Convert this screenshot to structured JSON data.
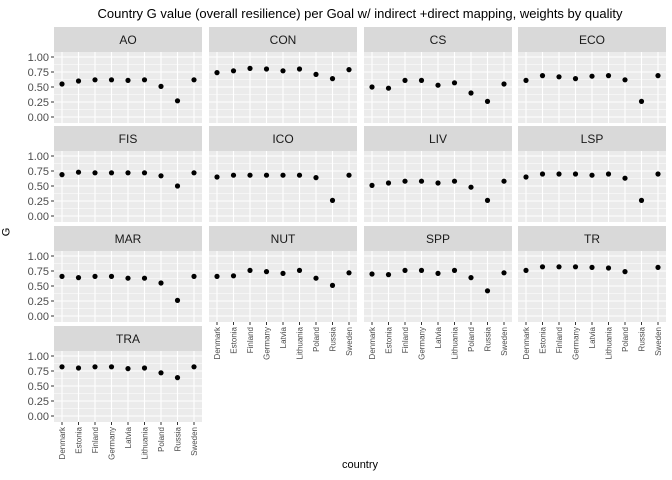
{
  "chart_data": {
    "type": "scatter",
    "title": "Country G value (overall resilience) per Goal w/ indirect +direct mapping, weights by quality",
    "xlabel": "country",
    "ylabel": "G",
    "ylim": [
      0,
      1
    ],
    "yticks": [
      "0.00",
      "0.25",
      "0.50",
      "0.75",
      "1.00"
    ],
    "countries": [
      "Denmark",
      "Estonia",
      "Finland",
      "Germany",
      "Latvia",
      "Lithuania",
      "Poland",
      "Russia",
      "Sweden"
    ],
    "grid": true,
    "facet_layout": "4 columns",
    "panels": [
      {
        "goal": "AO",
        "values": [
          0.55,
          0.6,
          0.62,
          0.62,
          0.61,
          0.62,
          0.51,
          0.27,
          0.62
        ]
      },
      {
        "goal": "CON",
        "values": [
          0.74,
          0.77,
          0.81,
          0.8,
          0.77,
          0.8,
          0.71,
          0.64,
          0.79
        ]
      },
      {
        "goal": "CS",
        "values": [
          0.5,
          0.48,
          0.61,
          0.61,
          0.53,
          0.57,
          0.4,
          0.26,
          0.55
        ]
      },
      {
        "goal": "ECO",
        "values": [
          0.61,
          0.69,
          0.67,
          0.64,
          0.68,
          0.69,
          0.62,
          0.26,
          0.69
        ]
      },
      {
        "goal": "FIS",
        "values": [
          0.69,
          0.73,
          0.72,
          0.72,
          0.72,
          0.72,
          0.67,
          0.5,
          0.72
        ]
      },
      {
        "goal": "ICO",
        "values": [
          0.65,
          0.68,
          0.68,
          0.68,
          0.68,
          0.68,
          0.64,
          0.26,
          0.68
        ]
      },
      {
        "goal": "LIV",
        "values": [
          0.51,
          0.55,
          0.58,
          0.58,
          0.55,
          0.58,
          0.48,
          0.26,
          0.58
        ]
      },
      {
        "goal": "LSP",
        "values": [
          0.65,
          0.7,
          0.7,
          0.7,
          0.68,
          0.7,
          0.63,
          0.26,
          0.7
        ]
      },
      {
        "goal": "MAR",
        "values": [
          0.66,
          0.64,
          0.66,
          0.66,
          0.63,
          0.63,
          0.55,
          0.26,
          0.66
        ]
      },
      {
        "goal": "NUT",
        "values": [
          0.66,
          0.67,
          0.76,
          0.74,
          0.71,
          0.76,
          0.63,
          0.51,
          0.72
        ]
      },
      {
        "goal": "SPP",
        "values": [
          0.7,
          0.69,
          0.76,
          0.76,
          0.71,
          0.76,
          0.64,
          0.42,
          0.72
        ]
      },
      {
        "goal": "TR",
        "values": [
          0.76,
          0.82,
          0.82,
          0.82,
          0.81,
          0.8,
          0.74,
          null,
          0.81
        ]
      },
      {
        "goal": "TRA",
        "values": [
          0.82,
          0.8,
          0.82,
          0.82,
          0.79,
          0.8,
          0.72,
          0.64,
          0.82
        ]
      }
    ],
    "colors": {
      "panel_bg": "#ebebeb",
      "strip_bg": "#d9d9d9",
      "grid": "#ffffff",
      "point": "#000000",
      "axis_text": "#4d4d4d"
    }
  }
}
